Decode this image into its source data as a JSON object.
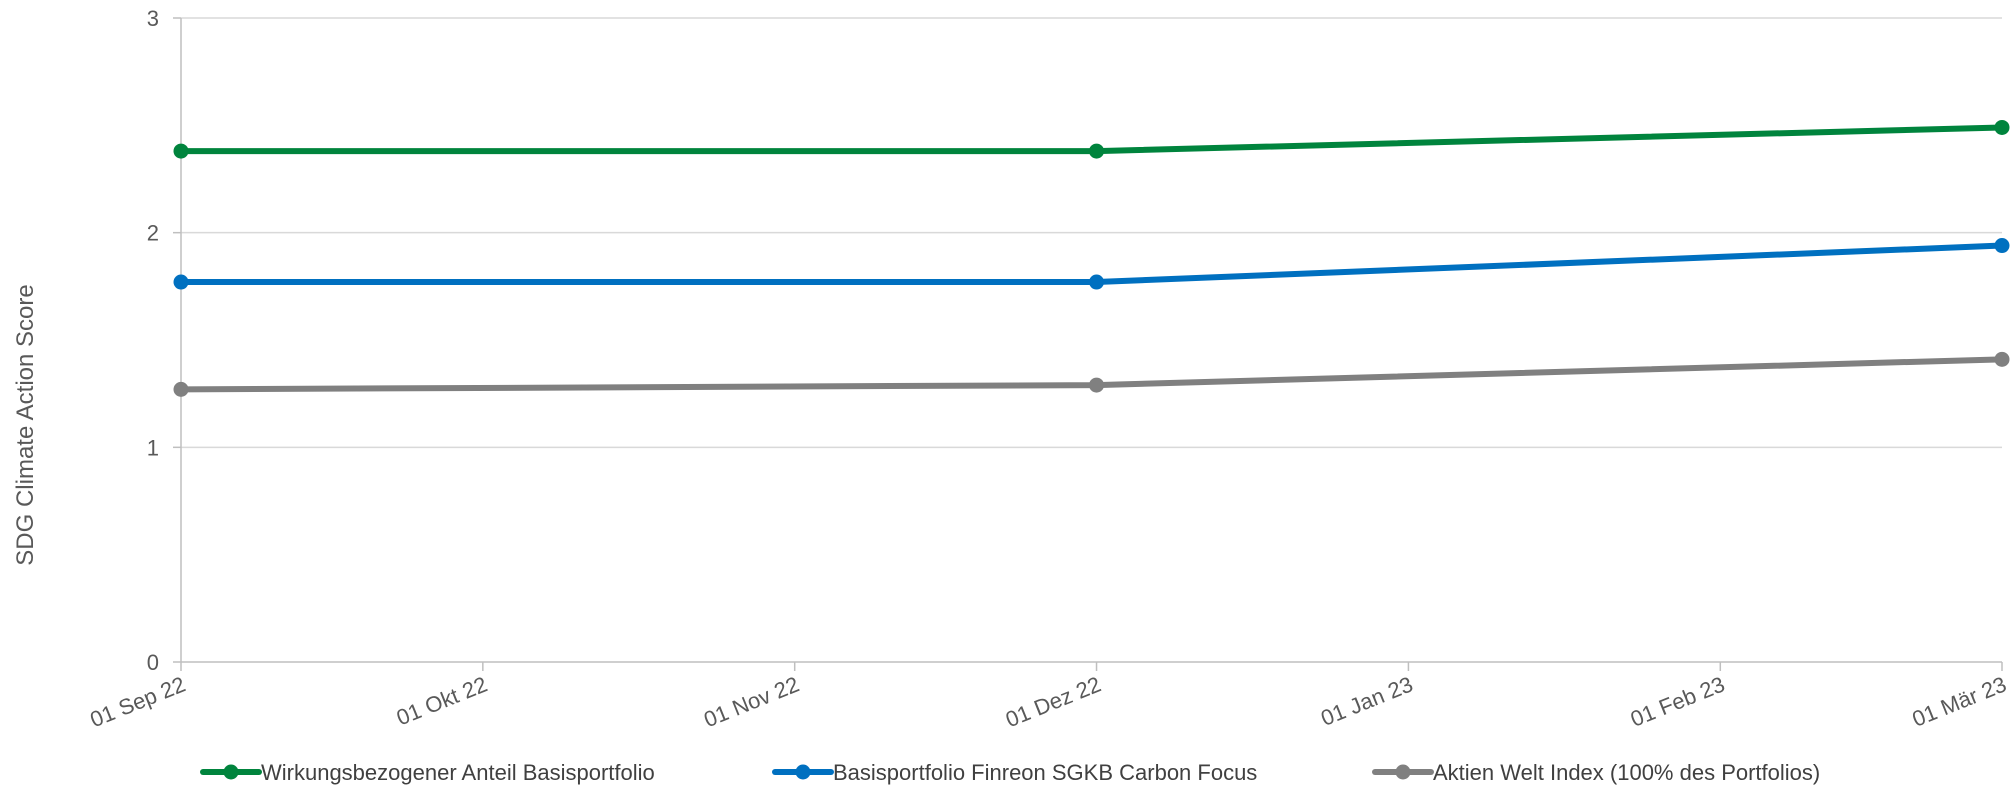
{
  "chart_data": {
    "type": "line",
    "title": "",
    "xlabel": "",
    "ylabel": "SDG Climate Action Score",
    "ylim": [
      0,
      3
    ],
    "y_ticks": [
      "0",
      "1",
      "2",
      "3"
    ],
    "x_ticks": [
      "01 Sep 22",
      "01 Okt 22",
      "01 Nov 22",
      "01 Dez 22",
      "01 Jan 23",
      "01 Feb 23",
      "01 Mär 23"
    ],
    "x_points": [
      "01 Sep 22",
      "01 Dez 22",
      "01 Mär 23"
    ],
    "grid": true,
    "legend_position": "bottom",
    "series": [
      {
        "name": "Wirkungsbezogener Anteil Basisportfolio",
        "color": "#00843D",
        "values": [
          2.38,
          2.38,
          2.49
        ]
      },
      {
        "name": "Basisportfolio Finreon SGKB Carbon Focus",
        "color": "#0070C0",
        "values": [
          1.77,
          1.77,
          1.94
        ]
      },
      {
        "name": "Aktien Welt Index (100% des Portfolios)",
        "color": "#808080",
        "values": [
          1.27,
          1.29,
          1.41
        ]
      }
    ]
  }
}
